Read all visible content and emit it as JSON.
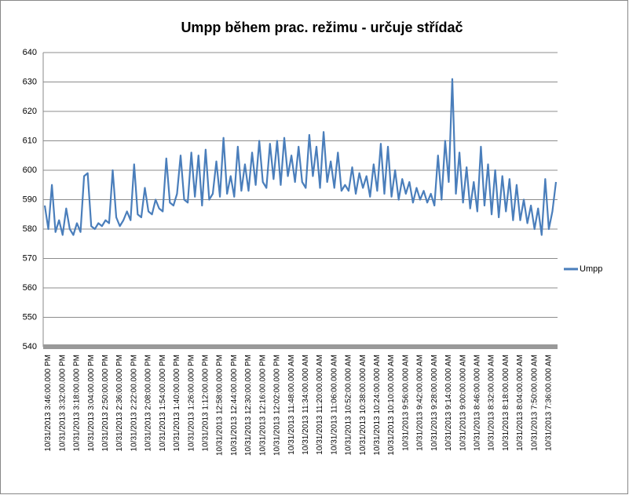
{
  "chart_data": {
    "type": "line",
    "title": "Umpp během prac. režimu - určuje střídač",
    "categories": [
      null,
      "10/31/2013 3:46:00.000 PM",
      null,
      null,
      null,
      "10/31/2013 3:32:00.000 PM",
      null,
      null,
      null,
      "10/31/2013 3:18:00.000 PM",
      null,
      null,
      null,
      "10/31/2013 3:04:00.000 PM",
      null,
      null,
      null,
      "10/31/2013 2:50:00.000 PM",
      null,
      null,
      null,
      "10/31/2013 2:36:00.000 PM",
      null,
      null,
      null,
      "10/31/2013 2:22:00.000 PM",
      null,
      null,
      null,
      "10/31/2013 2:08:00.000 PM",
      null,
      null,
      null,
      "10/31/2013 1:54:00.000 PM",
      null,
      null,
      null,
      "10/31/2013 1:40:00.000 PM",
      null,
      null,
      null,
      "10/31/2013 1:26:00.000 PM",
      null,
      null,
      null,
      "10/31/2013 1:12:00.000 PM",
      null,
      null,
      null,
      "10/31/2013 12:58:00.000 PM",
      null,
      null,
      null,
      "10/31/2013 12:44:00.000 PM",
      null,
      null,
      null,
      "10/31/2013 12:30:00.000 PM",
      null,
      null,
      null,
      "10/31/2013 12:16:00.000 PM",
      null,
      null,
      null,
      "10/31/2013 12:02:00.000 PM",
      null,
      null,
      null,
      "10/31/2013 11:48:00.000 AM",
      null,
      null,
      null,
      "10/31/2013 11:34:00.000 AM",
      null,
      null,
      null,
      "10/31/2013 11:20:00.000 AM",
      null,
      null,
      null,
      "10/31/2013 11:06:00.000 AM",
      null,
      null,
      null,
      "10/31/2013 10:52:00.000 AM",
      null,
      null,
      null,
      "10/31/2013 10:38:00.000 AM",
      null,
      null,
      null,
      "10/31/2013 10:24:00.000 AM",
      null,
      null,
      null,
      "10/31/2013 10:10:00.000 AM",
      null,
      null,
      null,
      "10/31/2013 9:56:00.000 AM",
      null,
      null,
      null,
      "10/31/2013 9:42:00.000 AM",
      null,
      null,
      null,
      "10/31/2013 9:28:00.000 AM",
      null,
      null,
      null,
      "10/31/2013 9:14:00.000 AM",
      null,
      null,
      null,
      "10/31/2013 9:00:00.000 AM",
      null,
      null,
      null,
      "10/31/2013 8:46:00.000 AM",
      null,
      null,
      null,
      "10/31/2013 8:32:00.000 AM",
      null,
      null,
      null,
      "10/31/2013 8:18:00.000 AM",
      null,
      null,
      null,
      "10/31/2013 8:04:00.000 AM",
      null,
      null,
      null,
      "10/31/2013 7:50:00.000 AM",
      null,
      null,
      null,
      "10/31/2013 7:36:00.000 AM",
      null,
      null
    ],
    "series": [
      {
        "name": "Umpp",
        "color": "#4a7ebb",
        "values": [
          588,
          580,
          595,
          579,
          583,
          578,
          587,
          580,
          578,
          582,
          579,
          598,
          599,
          581,
          580,
          582,
          581,
          583,
          582,
          600,
          584,
          581,
          583,
          586,
          583,
          602,
          585,
          584,
          594,
          586,
          585,
          590,
          587,
          586,
          604,
          589,
          588,
          592,
          605,
          590,
          589,
          606,
          591,
          605,
          588,
          607,
          590,
          592,
          603,
          591,
          611,
          592,
          598,
          591,
          608,
          593,
          602,
          593,
          606,
          595,
          610,
          596,
          594,
          609,
          597,
          610,
          595,
          611,
          598,
          605,
          596,
          608,
          596,
          594,
          612,
          598,
          608,
          594,
          613,
          596,
          603,
          594,
          606,
          593,
          595,
          593,
          601,
          592,
          599,
          594,
          598,
          591,
          602,
          593,
          609,
          592,
          608,
          591,
          600,
          590,
          597,
          592,
          596,
          589,
          594,
          590,
          593,
          589,
          592,
          588,
          605,
          590,
          610,
          596,
          631,
          592,
          606,
          589,
          601,
          587,
          596,
          586,
          608,
          588,
          602,
          585,
          600,
          584,
          598,
          586,
          597,
          583,
          595,
          583,
          590,
          582,
          588,
          580,
          587,
          578,
          597,
          580,
          586,
          596
        ]
      }
    ],
    "ylim": [
      540,
      640
    ],
    "yticks": [
      540,
      550,
      560,
      570,
      580,
      590,
      600,
      610,
      620,
      630,
      640
    ],
    "grid": true,
    "legend": "right"
  }
}
